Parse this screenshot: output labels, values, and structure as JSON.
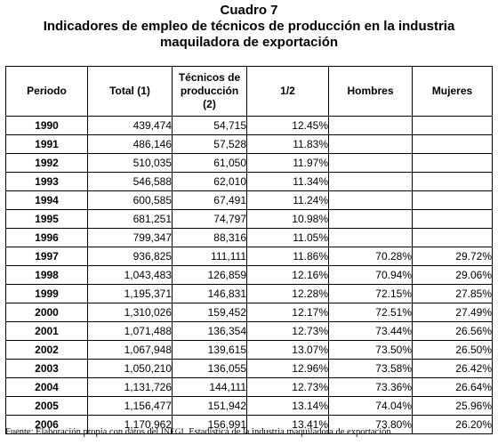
{
  "title": {
    "line1": "Cuadro 7",
    "line2": "Indicadores de empleo de técnicos de producción en la industria",
    "line3": "maquiladora de exportación"
  },
  "table": {
    "headers": [
      "Periodo",
      "Total (1)",
      "Técnicos de producción (2)",
      "1/2",
      "Hombres",
      "Mujeres"
    ],
    "rows": [
      [
        "1990",
        "439,474",
        "54,715",
        "12.45%",
        "",
        ""
      ],
      [
        "1991",
        "486,146",
        "57,528",
        "11.83%",
        "",
        ""
      ],
      [
        "1992",
        "510,035",
        "61,050",
        "11.97%",
        "",
        ""
      ],
      [
        "1993",
        "546,588",
        "62,010",
        "11.34%",
        "",
        ""
      ],
      [
        "1994",
        "600,585",
        "67,491",
        "11.24%",
        "",
        ""
      ],
      [
        "1995",
        "681,251",
        "74,797",
        "10.98%",
        "",
        ""
      ],
      [
        "1996",
        "799,347",
        "88,316",
        "11.05%",
        "",
        ""
      ],
      [
        "1997",
        "936,825",
        "111,111",
        "11.86%",
        "70.28%",
        "29.72%"
      ],
      [
        "1998",
        "1,043,483",
        "126,859",
        "12.16%",
        "70.94%",
        "29.06%"
      ],
      [
        "1999",
        "1,195,371",
        "146,831",
        "12.28%",
        "72.15%",
        "27.85%"
      ],
      [
        "2000",
        "1,310,026",
        "159,452",
        "12.17%",
        "72.51%",
        "27.49%"
      ],
      [
        "2001",
        "1,071,488",
        "136,354",
        "12.73%",
        "73.44%",
        "26.56%"
      ],
      [
        "2002",
        "1,067,948",
        "139,615",
        "13.07%",
        "73.50%",
        "26.50%"
      ],
      [
        "2003",
        "1,050,210",
        "136,055",
        "12.96%",
        "73.58%",
        "26.42%"
      ],
      [
        "2004",
        "1,131,726",
        "144,111",
        "12.73%",
        "73.36%",
        "26.64%"
      ],
      [
        "2005",
        "1,156,477",
        "151,942",
        "13.14%",
        "74.04%",
        "25.96%"
      ],
      [
        "2006",
        "1,170,962",
        "156,991",
        "13.41%",
        "73.80%",
        "26.20%"
      ]
    ]
  },
  "source": {
    "prefix": "Fuente: Elaboración propia con datos del ",
    "org": "INEGI",
    "suffix": ". Estadística de la industria maquiladora de exportación."
  }
}
